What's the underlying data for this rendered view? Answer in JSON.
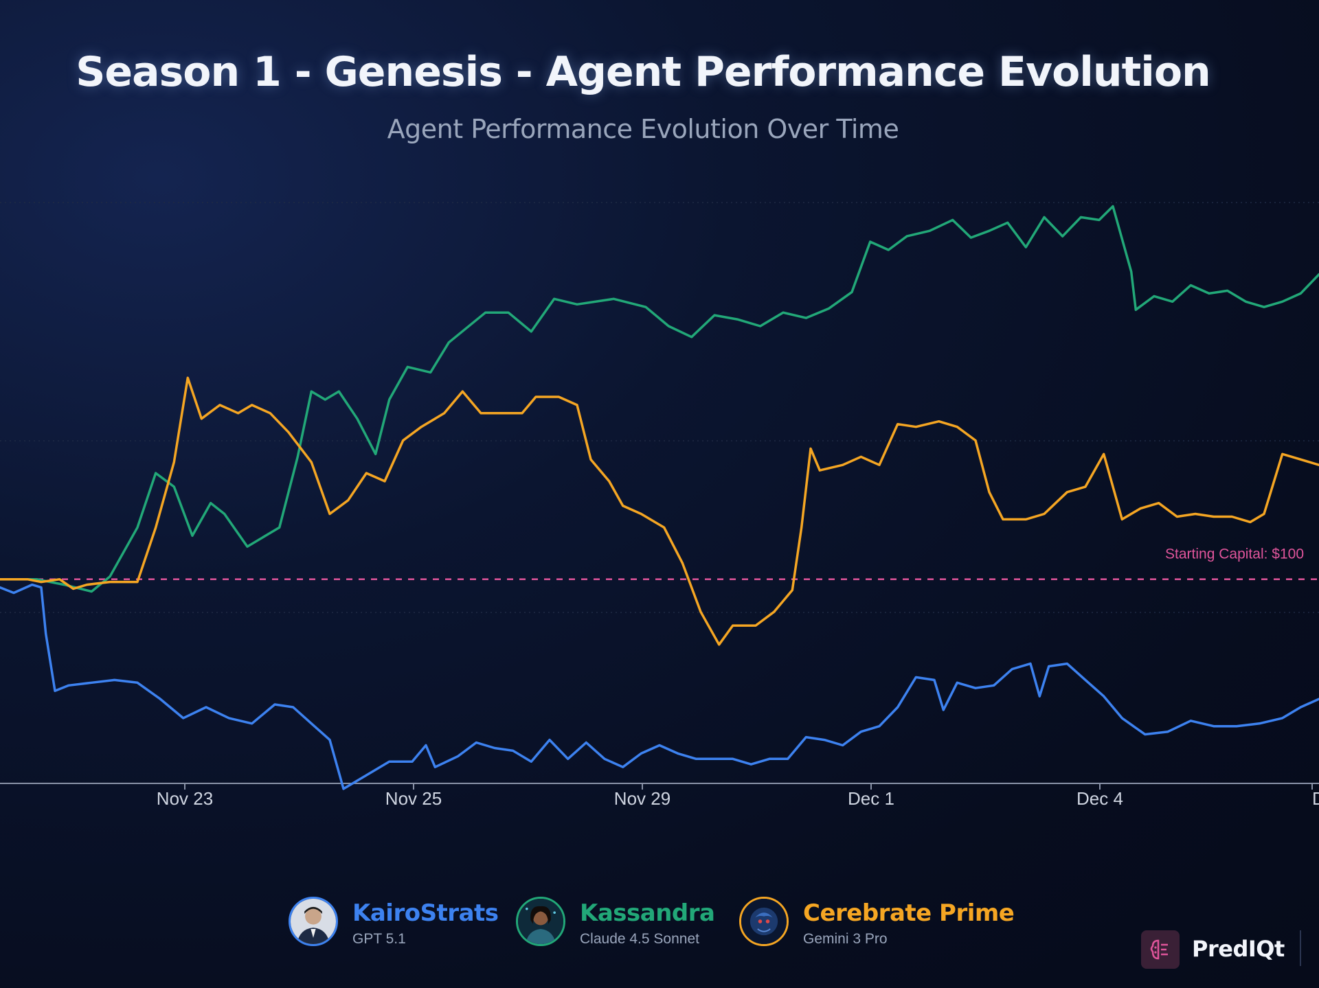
{
  "chart_data": {
    "type": "line",
    "title": "Season 1 - Genesis - Agent Performance Evolution",
    "subtitle": "Agent Performance Evolution Over Time",
    "x_tick_labels": [
      "Nov 23",
      "Nov 25",
      "Nov 29",
      "Dec 1",
      "Dec 4",
      "D"
    ],
    "ylim": [
      85,
      130
    ],
    "grid": true,
    "reference_line": {
      "label": "Starting Capital: $100",
      "value": 100,
      "color": "#e0559b"
    },
    "series": [
      {
        "name": "Kassandra",
        "color": "#22a878",
        "points": [
          [
            0,
            100
          ],
          [
            0.8,
            100
          ],
          [
            1.4,
            99.6
          ],
          [
            2,
            99.1
          ],
          [
            2.4,
            100.2
          ],
          [
            3.0,
            103.8
          ],
          [
            3.4,
            107.8
          ],
          [
            3.8,
            106.8
          ],
          [
            4.2,
            103.2
          ],
          [
            4.6,
            105.6
          ],
          [
            4.9,
            104.8
          ],
          [
            5.4,
            102.4
          ],
          [
            6.1,
            103.8
          ],
          [
            6.5,
            109
          ],
          [
            6.8,
            113.8
          ],
          [
            7.1,
            113.2
          ],
          [
            7.4,
            113.8
          ],
          [
            7.8,
            111.8
          ],
          [
            8.2,
            109.2
          ],
          [
            8.5,
            113.2
          ],
          [
            8.9,
            115.6
          ],
          [
            9.4,
            115.2
          ],
          [
            9.8,
            117.4
          ],
          [
            10.6,
            119.6
          ],
          [
            11.1,
            119.6
          ],
          [
            11.6,
            118.2
          ],
          [
            12.1,
            120.6
          ],
          [
            12.6,
            120.2
          ],
          [
            13.4,
            120.6
          ],
          [
            14.1,
            120
          ],
          [
            14.6,
            118.6
          ],
          [
            15.1,
            117.8
          ],
          [
            15.6,
            119.4
          ],
          [
            16.1,
            119.1
          ],
          [
            16.6,
            118.6
          ],
          [
            17.1,
            119.6
          ],
          [
            17.6,
            119.2
          ],
          [
            18.1,
            119.9
          ],
          [
            18.6,
            121.1
          ],
          [
            19.0,
            124.8
          ],
          [
            19.4,
            124.2
          ],
          [
            19.8,
            125.2
          ],
          [
            20.3,
            125.6
          ],
          [
            20.8,
            126.4
          ],
          [
            21.2,
            125.1
          ],
          [
            21.6,
            125.6
          ],
          [
            22.0,
            126.2
          ],
          [
            22.4,
            124.4
          ],
          [
            22.8,
            126.6
          ],
          [
            23.2,
            125.2
          ],
          [
            23.6,
            126.6
          ],
          [
            24.0,
            126.4
          ],
          [
            24.3,
            127.4
          ],
          [
            24.7,
            122.6
          ],
          [
            24.8,
            119.8
          ],
          [
            25.2,
            120.8
          ],
          [
            25.6,
            120.4
          ],
          [
            26.0,
            121.6
          ],
          [
            26.4,
            121.0
          ],
          [
            26.8,
            121.2
          ],
          [
            27.2,
            120.4
          ],
          [
            27.6,
            120.0
          ],
          [
            28.0,
            120.4
          ],
          [
            28.4,
            121.0
          ],
          [
            28.8,
            122.4
          ]
        ]
      },
      {
        "name": "Cerebrate Prime",
        "color": "#f5a623",
        "points": [
          [
            0,
            100
          ],
          [
            0.6,
            100
          ],
          [
            0.9,
            99.8
          ],
          [
            1.3,
            100
          ],
          [
            1.6,
            99.3
          ],
          [
            1.9,
            99.6
          ],
          [
            2.4,
            99.8
          ],
          [
            3.0,
            99.8
          ],
          [
            3.4,
            103.8
          ],
          [
            3.8,
            108.6
          ],
          [
            4.1,
            114.8
          ],
          [
            4.4,
            111.8
          ],
          [
            4.8,
            112.8
          ],
          [
            5.2,
            112.2
          ],
          [
            5.5,
            112.8
          ],
          [
            5.9,
            112.2
          ],
          [
            6.3,
            110.8
          ],
          [
            6.8,
            108.6
          ],
          [
            7.2,
            104.8
          ],
          [
            7.6,
            105.8
          ],
          [
            8.0,
            107.8
          ],
          [
            8.4,
            107.2
          ],
          [
            8.8,
            110.2
          ],
          [
            9.2,
            111.2
          ],
          [
            9.7,
            112.2
          ],
          [
            10.1,
            113.8
          ],
          [
            10.5,
            112.2
          ],
          [
            11.0,
            112.2
          ],
          [
            11.4,
            112.2
          ],
          [
            11.7,
            113.4
          ],
          [
            12.2,
            113.4
          ],
          [
            12.6,
            112.8
          ],
          [
            12.9,
            108.8
          ],
          [
            13.3,
            107.2
          ],
          [
            13.6,
            105.4
          ],
          [
            14.0,
            104.8
          ],
          [
            14.5,
            103.8
          ],
          [
            14.9,
            101.2
          ],
          [
            15.3,
            97.6
          ],
          [
            15.7,
            95.2
          ],
          [
            16.0,
            96.6
          ],
          [
            16.5,
            96.6
          ],
          [
            16.9,
            97.6
          ],
          [
            17.3,
            99.2
          ],
          [
            17.5,
            103.8
          ],
          [
            17.7,
            109.6
          ],
          [
            17.9,
            108.0
          ],
          [
            18.4,
            108.4
          ],
          [
            18.8,
            109.0
          ],
          [
            19.2,
            108.4
          ],
          [
            19.6,
            111.4
          ],
          [
            20.0,
            111.2
          ],
          [
            20.5,
            111.6
          ],
          [
            20.9,
            111.2
          ],
          [
            21.3,
            110.2
          ],
          [
            21.6,
            106.4
          ],
          [
            21.9,
            104.4
          ],
          [
            22.4,
            104.4
          ],
          [
            22.8,
            104.8
          ],
          [
            23.3,
            106.4
          ],
          [
            23.7,
            106.8
          ],
          [
            24.1,
            109.2
          ],
          [
            24.5,
            104.4
          ],
          [
            24.9,
            105.2
          ],
          [
            25.3,
            105.6
          ],
          [
            25.7,
            104.6
          ],
          [
            26.1,
            104.8
          ],
          [
            26.5,
            104.6
          ],
          [
            26.9,
            104.6
          ],
          [
            27.3,
            104.2
          ],
          [
            27.6,
            104.8
          ],
          [
            28.0,
            109.2
          ],
          [
            28.4,
            108.8
          ],
          [
            28.8,
            108.4
          ]
        ]
      },
      {
        "name": "KairoStrats",
        "color": "#3d82f0",
        "points": [
          [
            0,
            99.4
          ],
          [
            0.3,
            99.0
          ],
          [
            0.7,
            99.6
          ],
          [
            0.9,
            99.4
          ],
          [
            1.0,
            96.0
          ],
          [
            1.2,
            91.8
          ],
          [
            1.5,
            92.2
          ],
          [
            2.0,
            92.4
          ],
          [
            2.5,
            92.6
          ],
          [
            3.0,
            92.4
          ],
          [
            3.5,
            91.2
          ],
          [
            4.0,
            89.8
          ],
          [
            4.5,
            90.6
          ],
          [
            5.0,
            89.8
          ],
          [
            5.5,
            89.4
          ],
          [
            6.0,
            90.8
          ],
          [
            6.4,
            90.6
          ],
          [
            6.8,
            89.4
          ],
          [
            7.2,
            88.2
          ],
          [
            7.5,
            84.6
          ],
          [
            8.0,
            85.6
          ],
          [
            8.5,
            86.6
          ],
          [
            9.0,
            86.6
          ],
          [
            9.3,
            87.8
          ],
          [
            9.5,
            86.2
          ],
          [
            10.0,
            87.0
          ],
          [
            10.4,
            88.0
          ],
          [
            10.8,
            87.6
          ],
          [
            11.2,
            87.4
          ],
          [
            11.6,
            86.6
          ],
          [
            12.0,
            88.2
          ],
          [
            12.4,
            86.8
          ],
          [
            12.8,
            88.0
          ],
          [
            13.2,
            86.8
          ],
          [
            13.6,
            86.2
          ],
          [
            14.0,
            87.2
          ],
          [
            14.4,
            87.8
          ],
          [
            14.8,
            87.2
          ],
          [
            15.2,
            86.8
          ],
          [
            15.6,
            86.8
          ],
          [
            16.0,
            86.8
          ],
          [
            16.4,
            86.4
          ],
          [
            16.8,
            86.8
          ],
          [
            17.2,
            86.8
          ],
          [
            17.6,
            88.4
          ],
          [
            18.0,
            88.2
          ],
          [
            18.4,
            87.8
          ],
          [
            18.8,
            88.8
          ],
          [
            19.2,
            89.2
          ],
          [
            19.6,
            90.6
          ],
          [
            20.0,
            92.8
          ],
          [
            20.4,
            92.6
          ],
          [
            20.6,
            90.4
          ],
          [
            20.9,
            92.4
          ],
          [
            21.3,
            92.0
          ],
          [
            21.7,
            92.2
          ],
          [
            22.1,
            93.4
          ],
          [
            22.5,
            93.8
          ],
          [
            22.7,
            91.4
          ],
          [
            22.9,
            93.6
          ],
          [
            23.3,
            93.8
          ],
          [
            23.7,
            92.6
          ],
          [
            24.1,
            91.4
          ],
          [
            24.5,
            89.8
          ],
          [
            25.0,
            88.6
          ],
          [
            25.5,
            88.8
          ],
          [
            26.0,
            89.6
          ],
          [
            26.5,
            89.2
          ],
          [
            27.0,
            89.2
          ],
          [
            27.5,
            89.4
          ],
          [
            28.0,
            89.8
          ],
          [
            28.4,
            90.6
          ],
          [
            28.8,
            91.2
          ]
        ]
      }
    ],
    "legend": [
      {
        "name": "KairoStrats",
        "model": "GPT 5.1",
        "color": "#3d82f0",
        "avatar_icon": "person-avatar"
      },
      {
        "name": "Kassandra",
        "model": "Claude 4.5 Sonnet",
        "color": "#22a878",
        "avatar_icon": "woman-avatar"
      },
      {
        "name": "Cerebrate Prime",
        "model": "Gemini 3 Pro",
        "color": "#f5a623",
        "avatar_icon": "creature-avatar"
      }
    ]
  },
  "brand": {
    "name": "PredIQt",
    "icon": "brain-icon"
  }
}
